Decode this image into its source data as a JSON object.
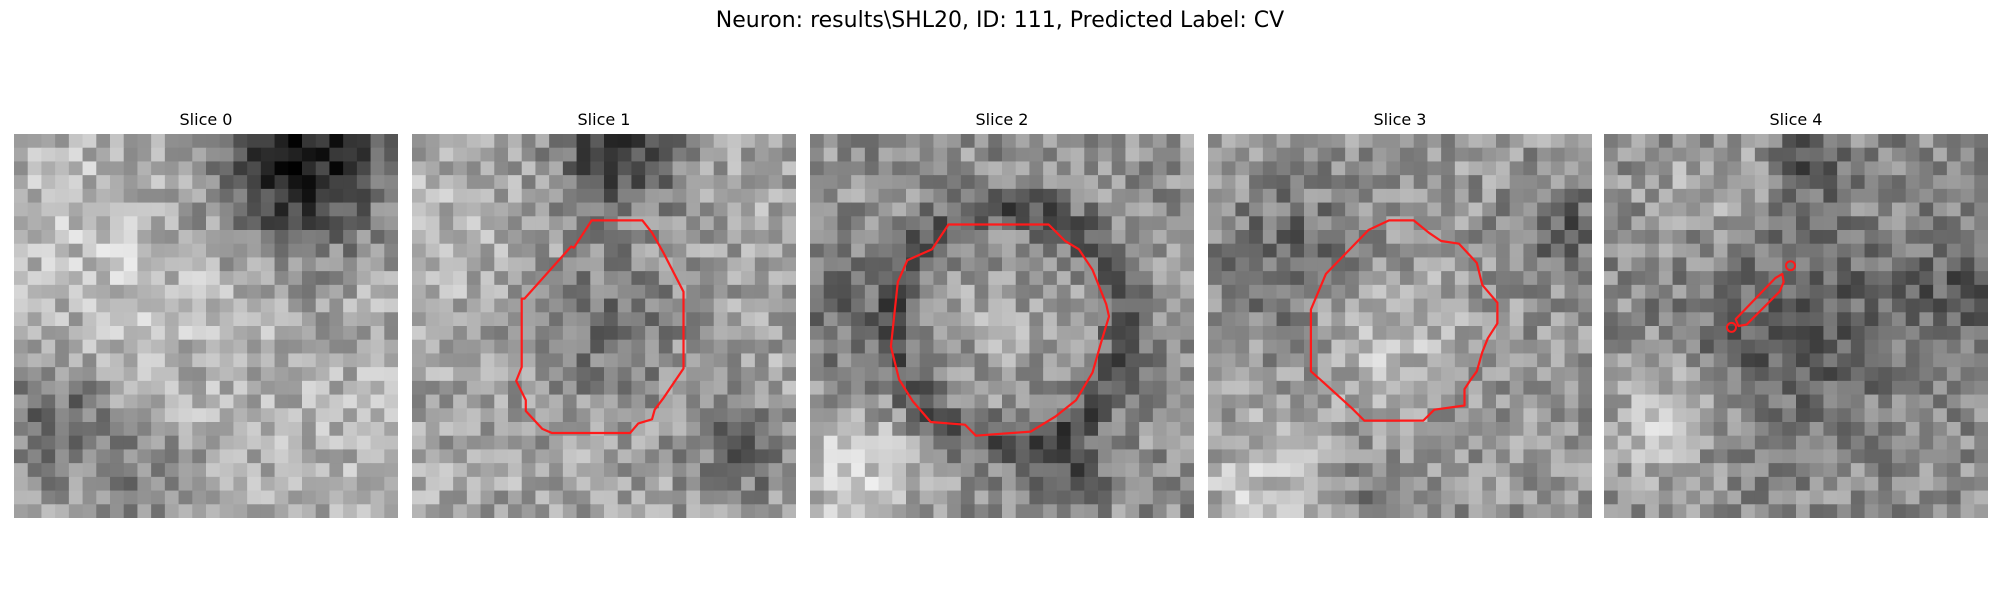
{
  "figure": {
    "title": "Neuron: results\\SHL20, ID: 111, Predicted Label: CV"
  },
  "panels": [
    {
      "title": "Slice 0",
      "seed": 11,
      "theme": "s0",
      "contour": "none"
    },
    {
      "title": "Slice 1",
      "seed": 23,
      "theme": "s1",
      "contour": "octagon-left"
    },
    {
      "title": "Slice 2",
      "seed": 37,
      "theme": "s2",
      "contour": "octagon-center"
    },
    {
      "title": "Slice 3",
      "seed": 51,
      "theme": "s3",
      "contour": "octagon-right"
    },
    {
      "title": "Slice 4",
      "seed": 79,
      "theme": "s4",
      "contour": "small-capsule"
    }
  ],
  "colors": {
    "contour": "#ff1a1a",
    "background": "#ffffff"
  }
}
